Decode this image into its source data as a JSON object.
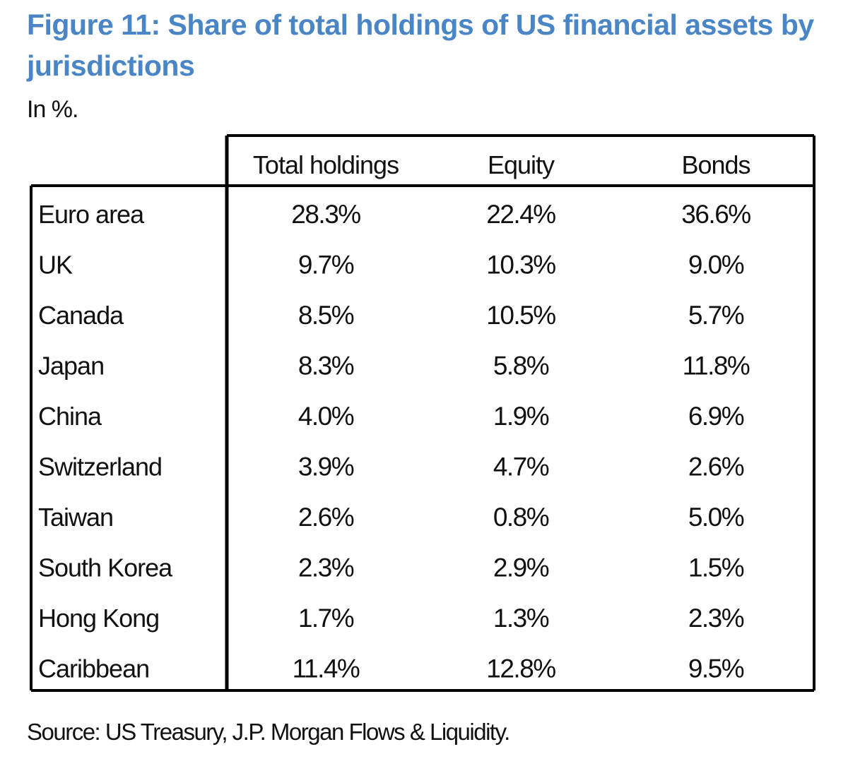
{
  "title": "Figure 11: Share of total holdings of US financial assets by jurisdictions",
  "subtitle": "In %.",
  "source": "Source: US Treasury, J.P. Morgan Flows & Liquidity.",
  "chart_data": {
    "type": "table",
    "title": "Figure 11: Share of total holdings of US financial assets by jurisdictions",
    "unit": "In %.",
    "columns": [
      "Total holdings",
      "Equity",
      "Bonds"
    ],
    "rows": [
      {
        "label": "Euro area",
        "values": [
          "28.3%",
          "22.4%",
          "36.6%"
        ]
      },
      {
        "label": "UK",
        "values": [
          "9.7%",
          "10.3%",
          "9.0%"
        ]
      },
      {
        "label": "Canada",
        "values": [
          "8.5%",
          "10.5%",
          "5.7%"
        ]
      },
      {
        "label": "Japan",
        "values": [
          "8.3%",
          "5.8%",
          "11.8%"
        ]
      },
      {
        "label": "China",
        "values": [
          "4.0%",
          "1.9%",
          "6.9%"
        ]
      },
      {
        "label": "Switzerland",
        "values": [
          "3.9%",
          "4.7%",
          "2.6%"
        ]
      },
      {
        "label": "Taiwan",
        "values": [
          "2.6%",
          "0.8%",
          "5.0%"
        ]
      },
      {
        "label": "South Korea",
        "values": [
          "2.3%",
          "2.9%",
          "1.5%"
        ]
      },
      {
        "label": "Hong Kong",
        "values": [
          "1.7%",
          "1.3%",
          "2.3%"
        ]
      },
      {
        "label": "Caribbean",
        "values": [
          "11.4%",
          "12.8%",
          "9.5%"
        ]
      }
    ],
    "source": "Source: US Treasury, J.P. Morgan Flows & Liquidity."
  }
}
